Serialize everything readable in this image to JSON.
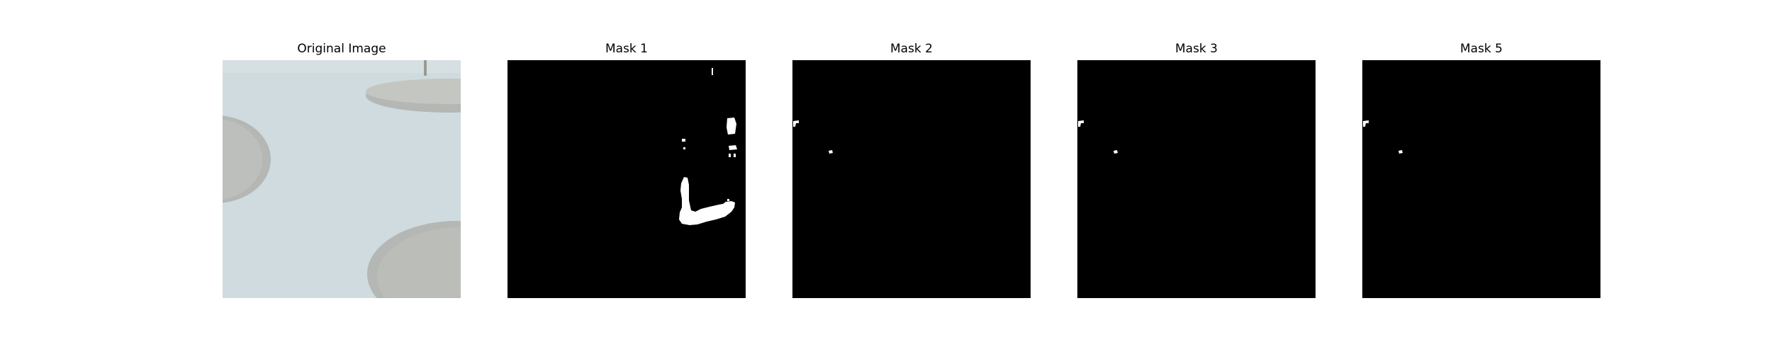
{
  "figure": {
    "panels": [
      {
        "title": "Original Image",
        "kind": "photo"
      },
      {
        "title": "Mask 1",
        "kind": "mask",
        "background": "#000000",
        "foreground": "#ffffff"
      },
      {
        "title": "Mask 2",
        "kind": "mask",
        "background": "#000000",
        "foreground": "#ffffff"
      },
      {
        "title": "Mask 3",
        "kind": "mask",
        "background": "#000000",
        "foreground": "#ffffff"
      },
      {
        "title": "Mask 5",
        "kind": "mask",
        "background": "#000000",
        "foreground": "#ffffff"
      }
    ],
    "photo_colors": {
      "surface": "#cfdbdf",
      "recess": "#b4b7b4",
      "recess_rim": "#c4c6c2"
    }
  }
}
